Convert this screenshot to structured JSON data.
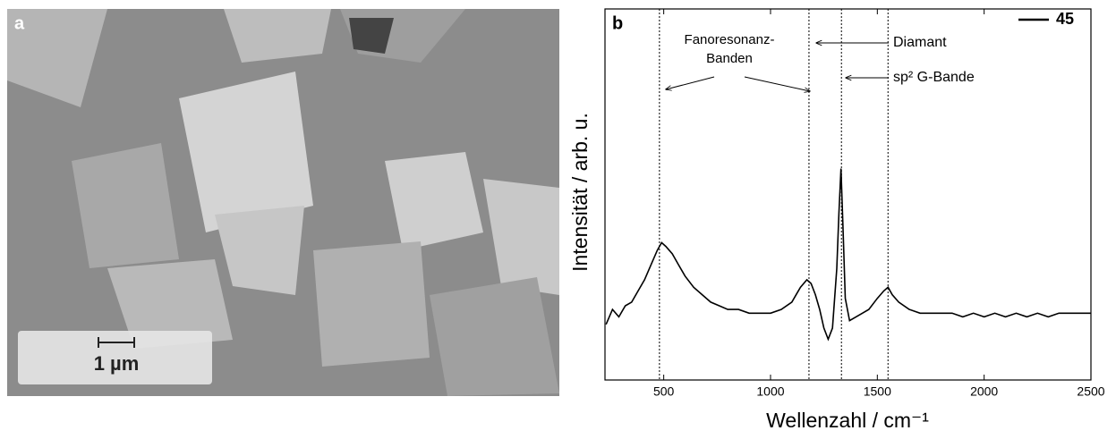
{
  "image_panel": {
    "label": "a",
    "scale_bar": "1 µm"
  },
  "chart_data": {
    "type": "line",
    "panel_label": "b",
    "xlabel": "Wellenzahl / cm⁻¹",
    "ylabel": "Intensität / arb. u.",
    "xlim": [
      225,
      2500
    ],
    "xticks": [
      500,
      1000,
      1500,
      2000,
      2500
    ],
    "ylim": [
      0,
      100
    ],
    "x": [
      230,
      260,
      290,
      320,
      350,
      380,
      410,
      440,
      470,
      490,
      510,
      540,
      570,
      600,
      640,
      680,
      720,
      760,
      800,
      850,
      900,
      950,
      1000,
      1050,
      1100,
      1140,
      1170,
      1190,
      1210,
      1230,
      1250,
      1270,
      1290,
      1310,
      1320,
      1330,
      1340,
      1350,
      1370,
      1400,
      1430,
      1460,
      1500,
      1530,
      1550,
      1570,
      1600,
      1650,
      1700,
      1750,
      1800,
      1850,
      1900,
      1950,
      2000,
      2050,
      2100,
      2150,
      2200,
      2250,
      2300,
      2350,
      2400,
      2450,
      2500
    ],
    "series": [
      {
        "name": "45",
        "color": "#000000",
        "values": [
          15,
          19,
          17,
          20,
          21,
          24,
          27,
          31,
          35,
          37,
          36,
          34,
          31,
          28,
          25,
          23,
          21,
          20,
          19,
          19,
          18,
          18,
          18,
          19,
          21,
          25,
          27,
          26,
          23,
          19,
          14,
          11,
          14,
          30,
          45,
          57,
          40,
          22,
          16,
          17,
          18,
          19,
          22,
          24,
          25,
          23,
          21,
          19,
          18,
          18,
          18,
          18,
          17,
          18,
          17,
          18,
          17,
          18,
          17,
          18,
          17,
          18,
          18,
          18,
          18
        ]
      }
    ],
    "reference_lines": [
      480,
      1180,
      1332,
      1550
    ],
    "annotations": [
      "Fanoresonanz-",
      "Banden",
      "Diamant",
      "sp² G-Bande"
    ],
    "legend": "top-right"
  }
}
